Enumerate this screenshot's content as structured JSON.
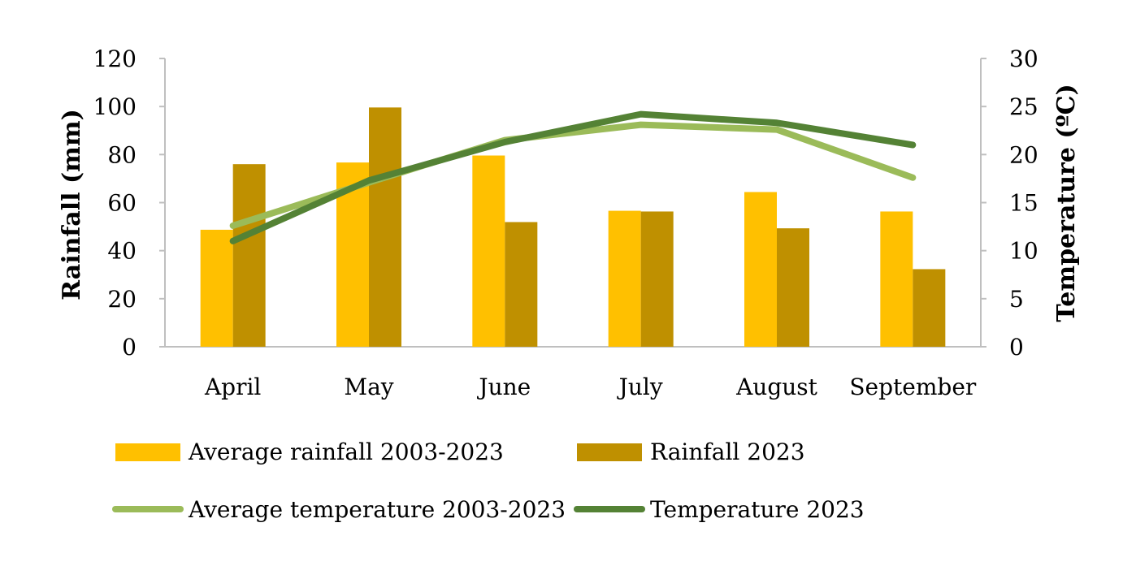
{
  "chart_data": {
    "type": "bar",
    "categories": [
      "April",
      "May",
      "June",
      "July",
      "August",
      "September"
    ],
    "series": [
      {
        "name": "Average rainfall 2003-2023",
        "type": "bar",
        "axis": "left",
        "color": "#FFC000",
        "values": [
          48.7,
          76.7,
          79.6,
          56.6,
          64.4,
          56.3
        ]
      },
      {
        "name": "Rainfall 2023",
        "type": "bar",
        "axis": "left",
        "color": "#BF9000",
        "values": [
          76.0,
          99.6,
          51.9,
          56.3,
          49.3,
          32.3
        ]
      },
      {
        "name": "Average temperature 2003-2023",
        "type": "line",
        "axis": "right",
        "color": "#9BBB59",
        "values": [
          12.6,
          17.1,
          21.5,
          23.1,
          22.6,
          17.6
        ]
      },
      {
        "name": "Temperature 2023",
        "type": "line",
        "axis": "right",
        "color": "#548235",
        "values": [
          11.0,
          17.3,
          21.3,
          24.2,
          23.3,
          21.0
        ]
      }
    ],
    "ylabel": "Rainfall (mm)",
    "y2label": "Temperature (ºC)",
    "ylim": [
      0,
      120
    ],
    "y2lim": [
      0,
      30
    ],
    "yticks": [
      "0",
      "20",
      "40",
      "60",
      "80",
      "100",
      "120"
    ],
    "y2ticks": [
      "0",
      "5",
      "10",
      "15",
      "20",
      "25",
      "30"
    ],
    "grid": false,
    "legend_position": "bottom"
  }
}
